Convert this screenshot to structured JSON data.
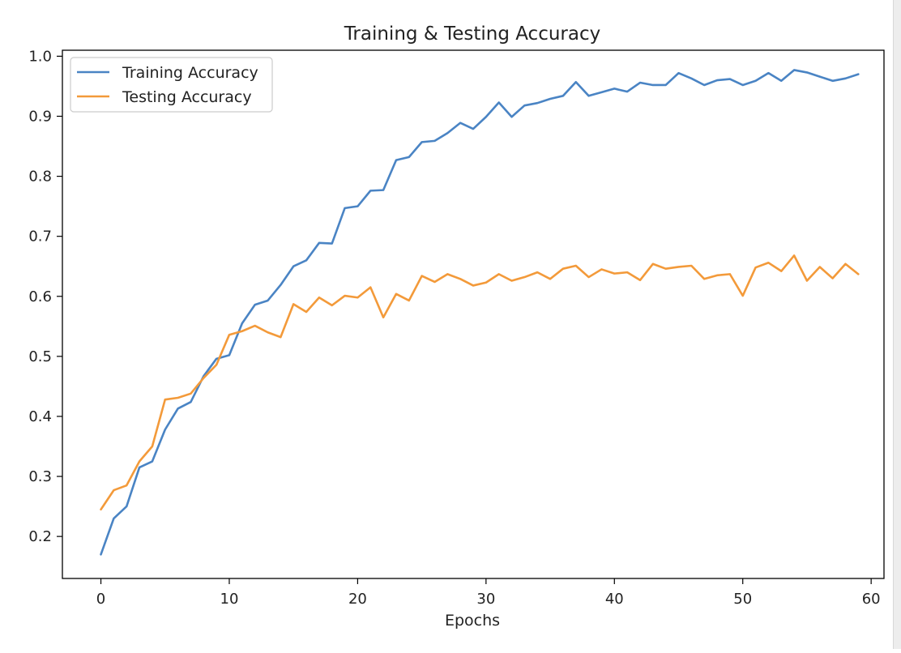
{
  "chart_data": {
    "type": "line",
    "title": "Training & Testing Accuracy",
    "xlabel": "Epochs",
    "ylabel": "",
    "xlim": [
      -3,
      61
    ],
    "ylim": [
      0.13,
      1.01
    ],
    "xticks": [
      0,
      10,
      20,
      30,
      40,
      50,
      60
    ],
    "yticks": [
      0.2,
      0.3,
      0.4,
      0.5,
      0.6,
      0.7,
      0.8,
      0.9,
      1.0
    ],
    "grid": false,
    "legend": {
      "position": "top-left",
      "entries": [
        "Training Accuracy",
        "Testing Accuracy"
      ]
    },
    "series": [
      {
        "name": "Training Accuracy",
        "color": "#4a84c4",
        "x": [
          0,
          1,
          2,
          3,
          4,
          5,
          6,
          7,
          8,
          9,
          10,
          11,
          12,
          13,
          14,
          15,
          16,
          17,
          18,
          19,
          20,
          21,
          22,
          23,
          24,
          25,
          26,
          27,
          28,
          29,
          30,
          31,
          32,
          33,
          34,
          35,
          36,
          37,
          38,
          39,
          40,
          41,
          42,
          43,
          44,
          45,
          46,
          47,
          48,
          49,
          50,
          51,
          52,
          53,
          54,
          55,
          56,
          57,
          58,
          59
        ],
        "values": [
          0.17,
          0.23,
          0.25,
          0.315,
          0.325,
          0.378,
          0.413,
          0.424,
          0.467,
          0.496,
          0.502,
          0.555,
          0.586,
          0.593,
          0.619,
          0.65,
          0.66,
          0.689,
          0.688,
          0.747,
          0.75,
          0.776,
          0.777,
          0.827,
          0.832,
          0.857,
          0.859,
          0.872,
          0.889,
          0.879,
          0.899,
          0.923,
          0.899,
          0.918,
          0.922,
          0.929,
          0.934,
          0.957,
          0.934,
          0.94,
          0.946,
          0.941,
          0.956,
          0.952,
          0.952,
          0.972,
          0.963,
          0.952,
          0.96,
          0.962,
          0.952,
          0.959,
          0.972,
          0.959,
          0.977,
          0.973,
          0.966,
          0.959,
          0.963,
          0.97
        ]
      },
      {
        "name": "Testing Accuracy",
        "color": "#f39a3a",
        "x": [
          0,
          1,
          2,
          3,
          4,
          5,
          6,
          7,
          8,
          9,
          10,
          11,
          12,
          13,
          14,
          15,
          16,
          17,
          18,
          19,
          20,
          21,
          22,
          23,
          24,
          25,
          26,
          27,
          28,
          29,
          30,
          31,
          32,
          33,
          34,
          35,
          36,
          37,
          38,
          39,
          40,
          41,
          42,
          43,
          44,
          45,
          46,
          47,
          48,
          49,
          50,
          51,
          52,
          53,
          54,
          55,
          56,
          57,
          58,
          59
        ],
        "values": [
          0.245,
          0.277,
          0.285,
          0.325,
          0.35,
          0.428,
          0.431,
          0.438,
          0.464,
          0.486,
          0.536,
          0.542,
          0.551,
          0.54,
          0.532,
          0.587,
          0.574,
          0.598,
          0.585,
          0.601,
          0.598,
          0.615,
          0.565,
          0.604,
          0.593,
          0.634,
          0.624,
          0.637,
          0.629,
          0.618,
          0.623,
          0.637,
          0.626,
          0.632,
          0.64,
          0.629,
          0.646,
          0.651,
          0.632,
          0.645,
          0.638,
          0.64,
          0.627,
          0.654,
          0.646,
          0.649,
          0.651,
          0.629,
          0.635,
          0.637,
          0.601,
          0.648,
          0.656,
          0.642,
          0.668,
          0.626,
          0.649,
          0.63,
          0.654,
          0.637
        ]
      }
    ]
  }
}
